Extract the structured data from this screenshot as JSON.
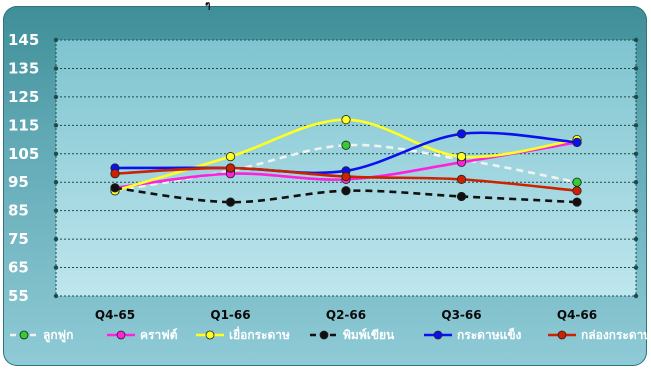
{
  "top_glyph": "ๆ",
  "colors": {
    "plot_bg_top": "#7ec4cf",
    "plot_bg_bottom": "#bfe6ee",
    "grid": "#1e4a4a",
    "marker_stroke": "#222222"
  },
  "chart_data": {
    "type": "line",
    "categories": [
      "Q4-65",
      "Q1-66",
      "Q2-66",
      "Q3-66",
      "Q4-66"
    ],
    "ylim": [
      55,
      145
    ],
    "yticks": [
      55,
      65,
      75,
      85,
      95,
      105,
      115,
      125,
      135,
      145
    ],
    "grid": true,
    "legend_position": "bottom",
    "series": [
      {
        "name": "ลูกฟูก",
        "color": "#f2f2f2",
        "marker": "#33cc33",
        "dash": true,
        "values": [
          92,
          99,
          108,
          103,
          95
        ]
      },
      {
        "name": "คราฟต์",
        "color": "#ff22dd",
        "marker": "#ff22dd",
        "dash": false,
        "values": [
          93,
          98,
          96,
          102,
          109
        ]
      },
      {
        "name": "เยื่อกระดาษ",
        "color": "#ffff22",
        "marker": "#ffff22",
        "dash": false,
        "values": [
          92,
          104,
          117,
          104,
          110
        ]
      },
      {
        "name": "พิมพ์เขียน",
        "color": "#111111",
        "marker": "#111111",
        "dash": true,
        "values": [
          93,
          88,
          92,
          90,
          88
        ]
      },
      {
        "name": "กระดาษแข็ง",
        "color": "#0a10ee",
        "marker": "#0a10ee",
        "dash": false,
        "values": [
          100,
          100,
          99,
          112,
          109
        ]
      },
      {
        "name": "กล่องกระดาษ",
        "color": "#cc2200",
        "marker": "#cc2200",
        "dash": false,
        "values": [
          98,
          100,
          97,
          96,
          92
        ]
      }
    ]
  }
}
